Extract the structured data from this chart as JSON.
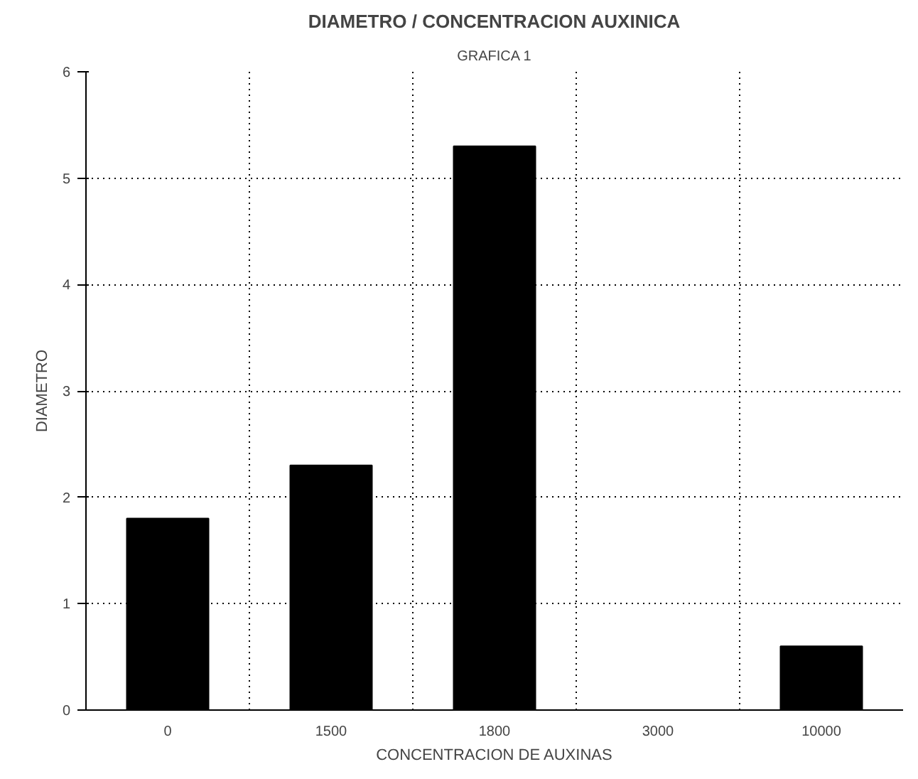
{
  "chart_data": {
    "type": "bar",
    "title": "DIAMETRO / CONCENTRACION AUXINICA",
    "subtitle": "GRAFICA 1",
    "xlabel": "CONCENTRACION DE AUXINAS",
    "ylabel": "DIAMETRO",
    "categories": [
      "0",
      "1500",
      "1800",
      "3000",
      "10000"
    ],
    "values": [
      1.8,
      2.3,
      5.3,
      0,
      0.6
    ],
    "color": "#000000",
    "ylim": [
      0,
      6
    ],
    "yticks": [
      0,
      1,
      2,
      3,
      4,
      5,
      6
    ],
    "grid": true
  }
}
